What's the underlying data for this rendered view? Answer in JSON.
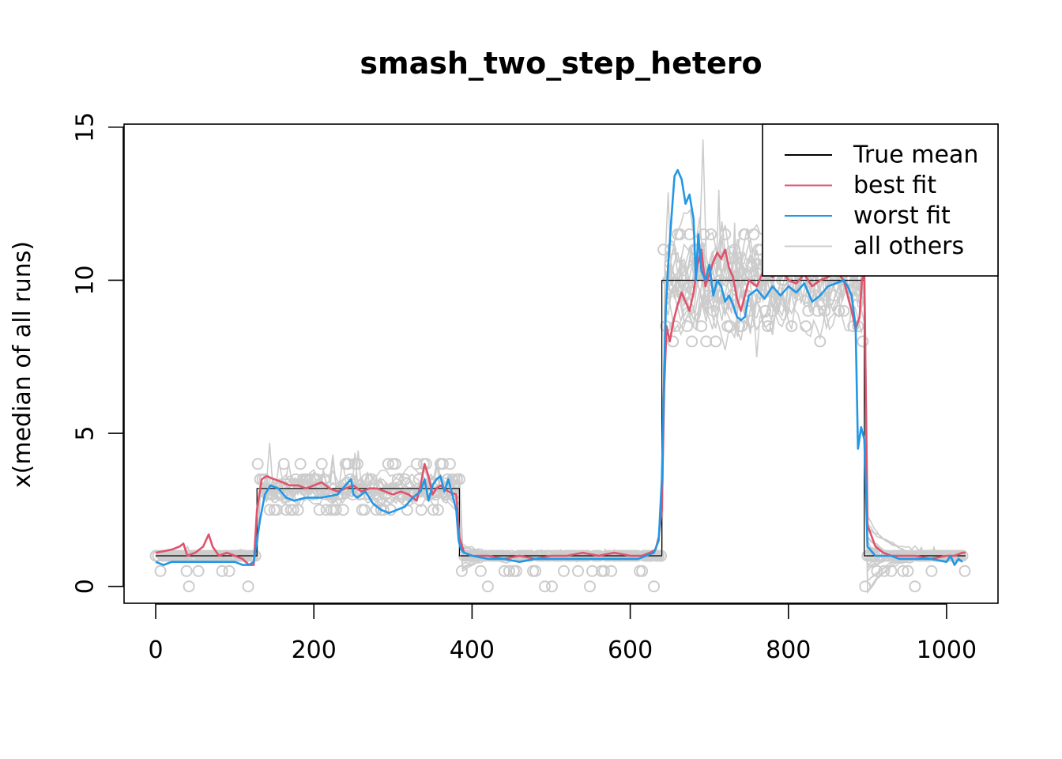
{
  "chart_data": {
    "type": "line",
    "title": "smash_two_step_hetero",
    "xlabel": "",
    "ylabel": "x(median of all runs)",
    "xlim": [
      -40,
      1065
    ],
    "ylim": [
      -0.55,
      15.1
    ],
    "x_ticks": [
      0,
      200,
      400,
      600,
      800,
      1000
    ],
    "y_ticks": [
      0,
      5,
      10,
      15
    ],
    "x_tick_labels": [
      "0",
      "200",
      "400",
      "600",
      "800",
      "1000"
    ],
    "y_tick_labels": [
      "0",
      "5",
      "10",
      "15"
    ],
    "legend": {
      "position": "top-right",
      "entries": [
        "True mean",
        "best fit",
        "worst fit",
        "all others"
      ]
    },
    "colors": {
      "true_mean": "#000000",
      "best_fit": "#DF536B",
      "worst_fit": "#2297E6",
      "all_others": "#CCCCCC",
      "points": "#CCCCCC"
    },
    "true_mean": {
      "x": [
        0,
        128,
        128,
        384,
        384,
        640,
        640,
        896,
        896,
        1024
      ],
      "y": [
        1,
        1,
        3.2,
        3.2,
        1,
        1,
        10,
        10,
        1,
        1
      ]
    },
    "best_fit": {
      "x": [
        0,
        20,
        30,
        35,
        40,
        50,
        60,
        67,
        72,
        80,
        90,
        100,
        110,
        118,
        124,
        128,
        134,
        140,
        150,
        160,
        170,
        180,
        190,
        200,
        210,
        220,
        230,
        240,
        250,
        260,
        270,
        280,
        290,
        300,
        310,
        320,
        330,
        335,
        340,
        345,
        350,
        355,
        360,
        370,
        380,
        384,
        390,
        400,
        420,
        440,
        460,
        480,
        500,
        520,
        540,
        560,
        580,
        600,
        615,
        625,
        632,
        636,
        640,
        643,
        646,
        650,
        655,
        660,
        665,
        670,
        675,
        680,
        685,
        690,
        695,
        700,
        705,
        710,
        715,
        720,
        725,
        730,
        735,
        740,
        745,
        750,
        760,
        770,
        780,
        790,
        800,
        810,
        820,
        830,
        840,
        850,
        860,
        870,
        875,
        880,
        885,
        890,
        893,
        896,
        900,
        910,
        920,
        930,
        940,
        960,
        980,
        1000,
        1010,
        1020,
        1024
      ],
      "y": [
        1.1,
        1.2,
        1.3,
        1.4,
        1.0,
        1.1,
        1.3,
        1.7,
        1.3,
        1.0,
        1.1,
        1.0,
        0.9,
        0.7,
        0.7,
        2.5,
        3.5,
        3.6,
        3.5,
        3.4,
        3.3,
        3.3,
        3.2,
        3.3,
        3.4,
        3.2,
        3.1,
        3.2,
        3.3,
        3.1,
        3.2,
        3.2,
        3.1,
        3.0,
        3.1,
        3.0,
        2.8,
        3.3,
        4.0,
        3.6,
        3.0,
        3.2,
        3.3,
        3.1,
        3.0,
        1.6,
        1.1,
        1.0,
        1.0,
        0.9,
        1.0,
        0.9,
        1.0,
        1.0,
        1.1,
        1.0,
        1.1,
        1.0,
        1.0,
        1.1,
        1.2,
        1.6,
        2.5,
        6.5,
        8.5,
        8.0,
        8.7,
        9.2,
        9.6,
        9.3,
        9.0,
        9.6,
        10.5,
        11.0,
        9.8,
        10.2,
        10.6,
        10.9,
        10.7,
        11.0,
        10.4,
        10.1,
        9.4,
        9.0,
        9.5,
        10.0,
        9.8,
        10.4,
        10.1,
        10.4,
        10.0,
        9.9,
        10.2,
        9.8,
        10.0,
        10.1,
        10.3,
        10.0,
        9.5,
        9.0,
        8.4,
        8.8,
        10.0,
        10.2,
        2.0,
        1.3,
        1.1,
        1.0,
        1.0,
        1.0,
        0.9,
        1.0,
        1.0,
        1.1,
        1.1
      ]
    },
    "worst_fit": {
      "x": [
        0,
        10,
        20,
        40,
        60,
        80,
        100,
        110,
        118,
        124,
        128,
        132,
        138,
        145,
        155,
        165,
        175,
        190,
        210,
        230,
        240,
        247,
        250,
        255,
        265,
        275,
        285,
        295,
        305,
        315,
        325,
        335,
        340,
        345,
        350,
        355,
        360,
        365,
        370,
        375,
        380,
        383,
        386,
        390,
        400,
        420,
        440,
        460,
        480,
        500,
        520,
        540,
        560,
        580,
        600,
        610,
        620,
        630,
        636,
        640,
        643,
        645,
        648,
        652,
        656,
        660,
        665,
        670,
        675,
        680,
        683,
        686,
        690,
        695,
        700,
        705,
        710,
        715,
        720,
        725,
        730,
        735,
        740,
        745,
        750,
        760,
        770,
        780,
        790,
        800,
        810,
        820,
        830,
        840,
        850,
        860,
        870,
        875,
        880,
        885,
        888,
        892,
        896,
        900,
        910,
        920,
        930,
        940,
        960,
        980,
        1000,
        1005,
        1010,
        1015,
        1020
      ],
      "y": [
        0.8,
        0.7,
        0.8,
        0.8,
        0.8,
        0.8,
        0.8,
        0.7,
        0.7,
        0.8,
        1.5,
        2.2,
        3.0,
        3.3,
        3.2,
        2.9,
        2.8,
        2.9,
        2.9,
        3.0,
        3.3,
        3.5,
        3.0,
        2.9,
        3.1,
        2.7,
        2.5,
        2.4,
        2.5,
        2.6,
        2.9,
        3.1,
        3.5,
        2.8,
        3.3,
        3.5,
        3.6,
        3.1,
        3.5,
        3.0,
        2.5,
        1.5,
        1.2,
        1.1,
        1.0,
        0.9,
        0.9,
        0.8,
        0.9,
        0.9,
        0.9,
        0.9,
        0.9,
        0.9,
        0.9,
        0.9,
        1.0,
        1.1,
        1.5,
        3.5,
        7.0,
        9.0,
        10.5,
        12.0,
        13.4,
        13.6,
        13.3,
        12.5,
        12.8,
        12.0,
        10.0,
        11.5,
        10.3,
        10.0,
        10.5,
        9.5,
        10.0,
        9.8,
        9.3,
        9.5,
        9.2,
        8.8,
        8.7,
        8.8,
        9.5,
        9.7,
        9.4,
        9.8,
        9.5,
        9.8,
        9.6,
        9.9,
        9.3,
        9.5,
        9.8,
        9.9,
        10.0,
        9.8,
        9.5,
        8.5,
        4.5,
        5.2,
        4.8,
        1.3,
        1.0,
        1.0,
        1.0,
        0.9,
        0.9,
        0.9,
        0.8,
        1.0,
        0.7,
        0.9,
        0.8
      ]
    }
  }
}
